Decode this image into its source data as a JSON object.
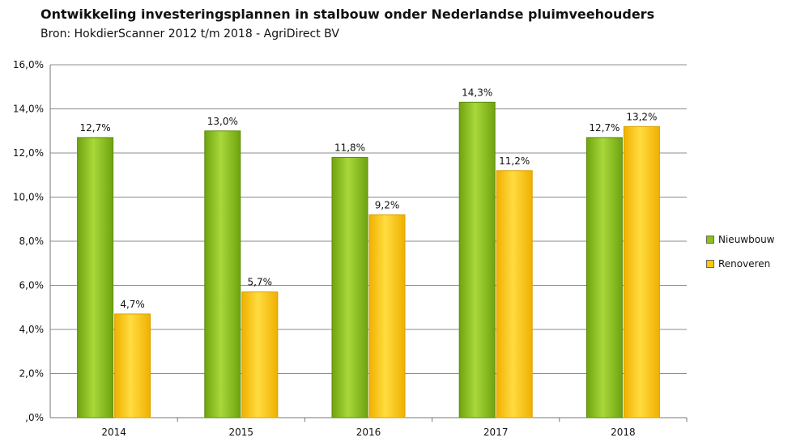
{
  "chart_data": {
    "type": "bar",
    "title": "Ontwikkeling investeringsplannen in stalbouw onder Nederlandse pluimveehouders",
    "subtitle": "Bron: HokdierScanner 2012 t/m 2018 - AgriDirect BV",
    "categories": [
      "2014",
      "2015",
      "2016",
      "2017",
      "2018"
    ],
    "series": [
      {
        "name": "Nieuwbouw",
        "color": "#8cc21a",
        "values": [
          12.7,
          13.0,
          11.8,
          14.3,
          12.7
        ],
        "labels": [
          "12,7%",
          "13,0%",
          "11,8%",
          "14,3%",
          "12,7%"
        ]
      },
      {
        "name": "Renoveren",
        "color": "#ffc800",
        "values": [
          4.7,
          5.7,
          9.2,
          11.2,
          13.2
        ],
        "labels": [
          "4,7%",
          "5,7%",
          "9,2%",
          "11,2%",
          "13,2%"
        ]
      }
    ],
    "yticks": [
      ",0%",
      "2,0%",
      "4,0%",
      "6,0%",
      "8,0%",
      "10,0%",
      "12,0%",
      "14,0%",
      "16,0%"
    ],
    "ylim": [
      0,
      16
    ],
    "ystep": 2,
    "grid": true,
    "legend_position": "right"
  }
}
